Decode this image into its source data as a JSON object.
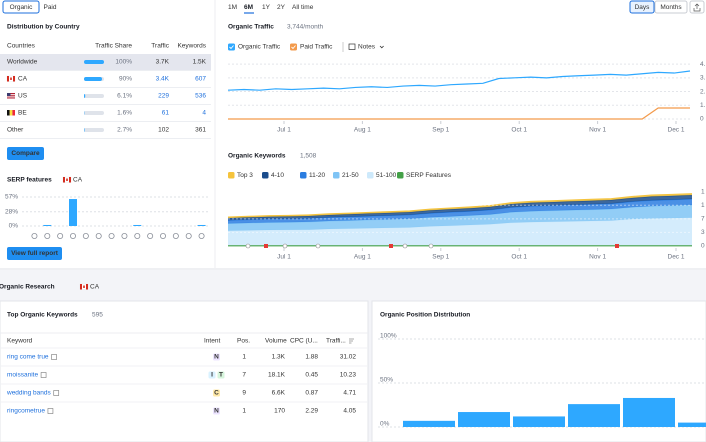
{
  "tabs": [
    "Organic",
    "Paid"
  ],
  "distribution": {
    "title": "Distribution by Country",
    "columns": [
      "Countries",
      "Traffic Share",
      "Traffic",
      "Keywords"
    ],
    "rows": [
      {
        "country": "Worldwide",
        "share": 100,
        "share_label": "100%",
        "traffic": "3.7K",
        "keywords": "1.5K",
        "link": false
      },
      {
        "country": "CA",
        "share": 90,
        "share_label": "90%",
        "traffic": "3.4K",
        "keywords": "607",
        "link": true
      },
      {
        "country": "US",
        "share": 6.1,
        "share_label": "6.1%",
        "traffic": "229",
        "keywords": "536",
        "link": true
      },
      {
        "country": "BE",
        "share": 1.6,
        "share_label": "1.6%",
        "traffic": "61",
        "keywords": "4",
        "link": true
      },
      {
        "country": "Other",
        "share": 2.7,
        "share_label": "2.7%",
        "traffic": "102",
        "keywords": "361",
        "link": false
      }
    ],
    "button": "Compare"
  },
  "serp_features": {
    "type": "bar",
    "title": "SERP features",
    "country": "CA",
    "values": [
      0,
      2,
      0,
      53,
      0,
      0,
      0,
      0,
      2,
      0,
      0,
      0,
      0,
      2
    ],
    "color": "#2ea8ff",
    "ylim": [
      0,
      57
    ],
    "yticks": [
      {
        "value": 0,
        "label": "0%"
      },
      {
        "value": 28,
        "label": "28%"
      },
      {
        "value": 57,
        "label": "57%"
      }
    ],
    "button": "View full report"
  },
  "periods": [
    "1M",
    "6M",
    "1Y",
    "2Y",
    "All time"
  ],
  "active_period": 1,
  "granularity": [
    "Days",
    "Months"
  ],
  "active_granularity": 0,
  "organic_traffic": {
    "type": "line",
    "title": "Organic Traffic",
    "subtitle": "3,744/month",
    "notes": "Notes",
    "series": [
      {
        "name": "Organic Traffic",
        "color": "#2ea8ff",
        "values": [
          2.1,
          2.15,
          2.1,
          2.2,
          2.15,
          2.2,
          2.25,
          2.2,
          2.3,
          2.35,
          2.3,
          2.4,
          2.45,
          2.4,
          2.5,
          2.55,
          2.6,
          2.95,
          3.0,
          3.05,
          3.0,
          3.1,
          3.15,
          3.2,
          3.25,
          3.2,
          3.3,
          3.4,
          3.35,
          3.5
        ]
      },
      {
        "name": "Paid Traffic",
        "color": "#f39a4b",
        "values": [
          0,
          0,
          0,
          0,
          0,
          0,
          0,
          0,
          0,
          0,
          0,
          0,
          0,
          0,
          0,
          0,
          0,
          0,
          0,
          0,
          0,
          0,
          0,
          0,
          0,
          0,
          0,
          0.8,
          0.8,
          0.8
        ]
      }
    ],
    "xticks": [
      "Jul 1",
      "Aug 1",
      "Sep 1",
      "Oct 1",
      "Nov 1",
      "Dec 1"
    ],
    "ylim": [
      0,
      4.3
    ],
    "yticks": [
      0,
      {
        "value": 1,
        "label": "1."
      },
      {
        "value": 2,
        "label": "2."
      },
      {
        "value": 3,
        "label": "3."
      },
      {
        "value": 4,
        "label": "4."
      }
    ]
  },
  "organic_keywords": {
    "type": "area",
    "title": "Organic Keywords",
    "subtitle": "1,508",
    "series": [
      {
        "name": "Top 3",
        "color": "#f5c33b",
        "values": [
          30,
          30,
          31,
          31,
          32,
          32,
          33,
          33,
          34,
          34,
          35,
          36,
          36,
          37,
          38,
          38,
          39,
          39,
          40,
          40,
          41,
          42,
          42,
          43
        ]
      },
      {
        "name": "4-10",
        "color": "#1a4c8c",
        "values": [
          60,
          62,
          63,
          63,
          65,
          66,
          68,
          70,
          72,
          74,
          78,
          80,
          82,
          85,
          90,
          92,
          94,
          95,
          96,
          98,
          100,
          105,
          106,
          108
        ]
      },
      {
        "name": "11-20",
        "color": "#2b7de0",
        "values": [
          90,
          92,
          95,
          95,
          98,
          100,
          102,
          105,
          108,
          110,
          115,
          118,
          120,
          125,
          135,
          140,
          142,
          145,
          148,
          150,
          155,
          160,
          162,
          165
        ]
      },
      {
        "name": "21-50",
        "color": "#7fc4f5",
        "values": [
          200,
          205,
          210,
          210,
          215,
          220,
          225,
          230,
          235,
          240,
          250,
          255,
          260,
          270,
          290,
          300,
          305,
          310,
          315,
          320,
          330,
          340,
          345,
          350
        ]
      },
      {
        "name": "51-100",
        "color": "#cde9fb",
        "values": [
          420,
          430,
          440,
          445,
          450,
          470,
          480,
          490,
          500,
          510,
          540,
          560,
          580,
          600,
          640,
          660,
          670,
          680,
          690,
          700,
          740,
          760,
          770,
          780
        ]
      },
      {
        "name": "SERP Features",
        "color": "#43a047",
        "values": [
          5,
          5,
          5,
          5,
          5,
          5,
          5,
          5,
          5,
          5,
          5,
          5,
          5,
          5,
          5,
          5,
          5,
          5,
          5,
          5,
          5,
          5,
          5,
          5
        ]
      }
    ],
    "xticks": [
      "Jul 1",
      "Aug 1",
      "Sep 1",
      "Oct 1",
      "Nov 1",
      "Dec 1"
    ],
    "ylim": [
      0,
      1600
    ],
    "yticks": [
      0,
      {
        "value": 375,
        "label": "3"
      },
      {
        "value": 750,
        "label": "7"
      },
      {
        "value": 1125,
        "label": "1"
      },
      {
        "value": 1500,
        "label": "1"
      }
    ]
  },
  "research": {
    "title": "Organic Research",
    "country": "CA"
  },
  "top_keywords": {
    "title": "Top Organic Keywords",
    "count": "595",
    "columns": [
      "Keyword",
      "Intent",
      "Pos.",
      "Volume",
      "CPC (U...",
      "Traffi..."
    ],
    "rows": [
      {
        "keyword": "ring come true",
        "intent": [
          "N"
        ],
        "pos": "1",
        "volume": "1.3K",
        "cpc": "1.88",
        "traffic": "31.02"
      },
      {
        "keyword": "moissanite",
        "intent": [
          "I",
          "T"
        ],
        "pos": "7",
        "volume": "18.1K",
        "cpc": "0.45",
        "traffic": "10.23"
      },
      {
        "keyword": "wedding bands",
        "intent": [
          "C"
        ],
        "pos": "9",
        "volume": "6.6K",
        "cpc": "0.87",
        "traffic": "4.71"
      },
      {
        "keyword": "ringcometrue",
        "intent": [
          "N"
        ],
        "pos": "1",
        "volume": "170",
        "cpc": "2.29",
        "traffic": "4.05"
      }
    ]
  },
  "position_distribution": {
    "type": "bar",
    "title": "Organic Position Distribution",
    "values": [
      7,
      17,
      12,
      26,
      33,
      5
    ],
    "color": "#2ea8ff",
    "ylim": [
      0,
      100
    ],
    "yticks": [
      {
        "value": 0,
        "label": "0%"
      },
      {
        "value": 50,
        "label": "50%"
      },
      {
        "value": 100,
        "label": "100%"
      }
    ]
  }
}
